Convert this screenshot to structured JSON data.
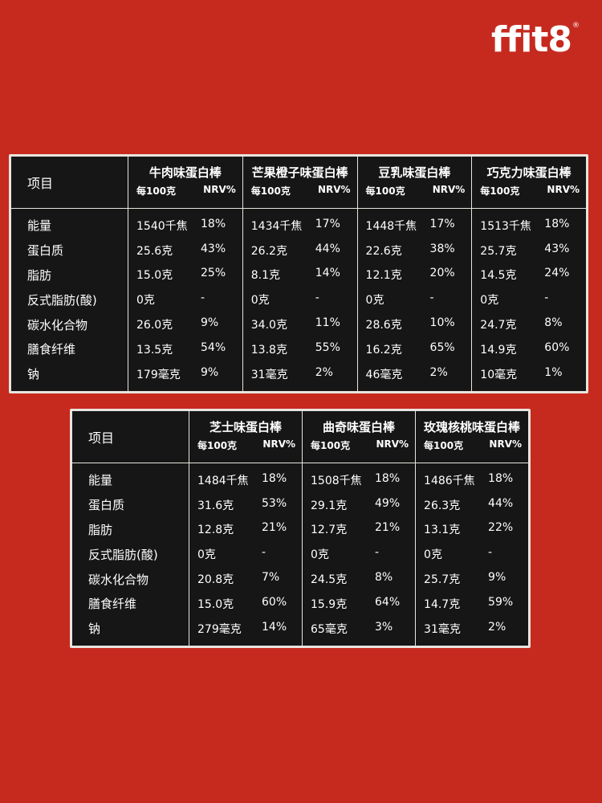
{
  "logo": {
    "text": "ffit8",
    "mark": "®"
  },
  "column_headers": {
    "label": "项目",
    "per100": "每100克",
    "nrv": "NRV%"
  },
  "rows": [
    "能量",
    "蛋白质",
    "脂肪",
    "反式脂肪(酸)",
    "碳水化合物",
    "膳食纤维",
    "钠"
  ],
  "table1": {
    "flavors": [
      {
        "name": "牛肉味蛋白棒",
        "values": [
          [
            "1540千焦",
            "18%"
          ],
          [
            "25.6克",
            "43%"
          ],
          [
            "15.0克",
            "25%"
          ],
          [
            "0克",
            "-"
          ],
          [
            "26.0克",
            "9%"
          ],
          [
            "13.5克",
            "54%"
          ],
          [
            "179毫克",
            "9%"
          ]
        ]
      },
      {
        "name": "芒果橙子味蛋白棒",
        "values": [
          [
            "1434千焦",
            "17%"
          ],
          [
            "26.2克",
            "44%"
          ],
          [
            "8.1克",
            "14%"
          ],
          [
            "0克",
            "-"
          ],
          [
            "34.0克",
            "11%"
          ],
          [
            "13.8克",
            "55%"
          ],
          [
            "31毫克",
            "2%"
          ]
        ]
      },
      {
        "name": "豆乳味蛋白棒",
        "values": [
          [
            "1448千焦",
            "17%"
          ],
          [
            "22.6克",
            "38%"
          ],
          [
            "12.1克",
            "20%"
          ],
          [
            "0克",
            "-"
          ],
          [
            "28.6克",
            "10%"
          ],
          [
            "16.2克",
            "65%"
          ],
          [
            "46毫克",
            "2%"
          ]
        ]
      },
      {
        "name": "巧克力味蛋白棒",
        "values": [
          [
            "1513千焦",
            "18%"
          ],
          [
            "25.7克",
            "43%"
          ],
          [
            "14.5克",
            "24%"
          ],
          [
            "0克",
            "-"
          ],
          [
            "24.7克",
            "8%"
          ],
          [
            "14.9克",
            "60%"
          ],
          [
            "10毫克",
            "1%"
          ]
        ]
      }
    ]
  },
  "table2": {
    "flavors": [
      {
        "name": "芝士味蛋白棒",
        "values": [
          [
            "1484千焦",
            "18%"
          ],
          [
            "31.6克",
            "53%"
          ],
          [
            "12.8克",
            "21%"
          ],
          [
            "0克",
            "-"
          ],
          [
            "20.8克",
            "7%"
          ],
          [
            "15.0克",
            "60%"
          ],
          [
            "279毫克",
            "14%"
          ]
        ]
      },
      {
        "name": "曲奇味蛋白棒",
        "values": [
          [
            "1508千焦",
            "18%"
          ],
          [
            "29.1克",
            "49%"
          ],
          [
            "12.7克",
            "21%"
          ],
          [
            "0克",
            "-"
          ],
          [
            "24.5克",
            "8%"
          ],
          [
            "15.9克",
            "64%"
          ],
          [
            "65毫克",
            "3%"
          ]
        ]
      },
      {
        "name": "玫瑰核桃味蛋白棒",
        "values": [
          [
            "1486千焦",
            "18%"
          ],
          [
            "26.3克",
            "44%"
          ],
          [
            "13.1克",
            "22%"
          ],
          [
            "0克",
            "-"
          ],
          [
            "25.7克",
            "9%"
          ],
          [
            "14.7克",
            "59%"
          ],
          [
            "31毫克",
            "2%"
          ]
        ]
      }
    ]
  },
  "colors": {
    "background": "#c62a1f",
    "panel": "#161616",
    "border": "#e9e4df",
    "text": "#ffffff"
  }
}
